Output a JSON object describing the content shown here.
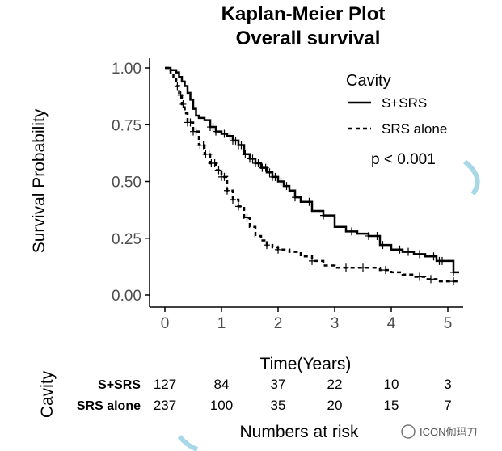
{
  "chart_data": {
    "type": "line",
    "subtype": "kaplan-meier-step",
    "title": "Kaplan-Meier Plot",
    "subtitle": "Overall survival",
    "xlabel": "Time(Years)",
    "ylabel": "Survival Probability",
    "xlim": [
      -0.2,
      5.2
    ],
    "ylim": [
      0,
      1.04
    ],
    "x_ticks": [
      0,
      1,
      2,
      3,
      4,
      5
    ],
    "y_ticks": [
      0.0,
      0.25,
      0.5,
      0.75,
      1.0
    ],
    "y_tick_labels": [
      "0.00",
      "0.25",
      "0.50",
      "0.75",
      "1.00"
    ],
    "grid": false,
    "legend": {
      "title": "Cavity",
      "position": "top-right",
      "entries": [
        "S+SRS",
        "SRS alone"
      ]
    },
    "annotation": "p < 0.001",
    "series": [
      {
        "name": "S+SRS",
        "line_style": "solid",
        "x": [
          0,
          0.1,
          0.2,
          0.25,
          0.3,
          0.35,
          0.4,
          0.45,
          0.5,
          0.55,
          0.6,
          0.7,
          0.8,
          0.9,
          1.0,
          1.1,
          1.2,
          1.3,
          1.4,
          1.5,
          1.6,
          1.7,
          1.8,
          1.9,
          2.0,
          2.1,
          2.2,
          2.3,
          2.4,
          2.6,
          2.8,
          3.0,
          3.2,
          3.4,
          3.6,
          3.8,
          4.0,
          4.2,
          4.4,
          4.6,
          4.8,
          5.0,
          5.1,
          5.2
        ],
        "y": [
          1.0,
          0.99,
          0.98,
          0.96,
          0.94,
          0.92,
          0.89,
          0.86,
          0.82,
          0.79,
          0.78,
          0.77,
          0.74,
          0.72,
          0.71,
          0.7,
          0.68,
          0.66,
          0.62,
          0.6,
          0.58,
          0.56,
          0.54,
          0.52,
          0.5,
          0.48,
          0.46,
          0.43,
          0.41,
          0.37,
          0.35,
          0.3,
          0.28,
          0.27,
          0.26,
          0.22,
          0.2,
          0.19,
          0.18,
          0.17,
          0.15,
          0.15,
          0.1,
          0.1
        ],
        "censor_x": [
          0.8,
          0.85,
          0.9,
          1.05,
          1.15,
          1.2,
          1.25,
          1.3,
          1.35,
          1.42,
          1.5,
          1.55,
          1.6,
          1.65,
          1.72,
          1.78,
          1.85,
          1.9,
          1.95,
          2.05,
          2.15,
          2.3,
          2.55,
          2.8,
          3.3,
          3.6,
          3.75,
          3.85,
          4.15,
          4.3,
          4.5,
          4.75,
          4.85,
          4.9,
          5.1
        ]
      },
      {
        "name": "SRS alone",
        "line_style": "dashed",
        "x": [
          0,
          0.1,
          0.15,
          0.2,
          0.25,
          0.3,
          0.35,
          0.4,
          0.5,
          0.6,
          0.7,
          0.8,
          0.9,
          1.0,
          1.1,
          1.2,
          1.3,
          1.4,
          1.5,
          1.6,
          1.7,
          1.8,
          1.9,
          2.0,
          2.2,
          2.4,
          2.6,
          2.8,
          3.0,
          3.2,
          3.4,
          3.6,
          3.8,
          4.0,
          4.2,
          4.4,
          4.6,
          4.8,
          5.0,
          5.2
        ],
        "y": [
          1.0,
          0.98,
          0.95,
          0.92,
          0.88,
          0.84,
          0.8,
          0.76,
          0.72,
          0.66,
          0.62,
          0.58,
          0.55,
          0.52,
          0.46,
          0.42,
          0.39,
          0.34,
          0.3,
          0.26,
          0.24,
          0.22,
          0.21,
          0.2,
          0.19,
          0.17,
          0.15,
          0.13,
          0.12,
          0.12,
          0.12,
          0.12,
          0.11,
          0.1,
          0.09,
          0.08,
          0.07,
          0.06,
          0.06,
          0.06
        ],
        "censor_x": [
          0.22,
          0.28,
          0.32,
          0.4,
          0.45,
          0.5,
          0.55,
          0.62,
          0.68,
          0.72,
          0.78,
          0.82,
          0.88,
          0.95,
          1.0,
          1.05,
          1.1,
          1.2,
          1.3,
          1.45,
          1.8,
          2.0,
          2.6,
          3.2,
          3.5,
          3.9,
          4.5,
          4.7,
          5.1
        ]
      }
    ],
    "risk_table": {
      "axis_title": "Cavity",
      "caption": "Numbers at risk",
      "times": [
        0,
        1,
        2,
        3,
        4,
        5
      ],
      "rows": [
        {
          "group": "S+SRS",
          "counts": [
            "127",
            "84",
            "37",
            "22",
            "10",
            "3"
          ]
        },
        {
          "group": "SRS alone",
          "counts": [
            "237",
            "100",
            "35",
            "20",
            "15",
            "7"
          ]
        }
      ]
    }
  },
  "watermark": "ICON伽玛刀"
}
